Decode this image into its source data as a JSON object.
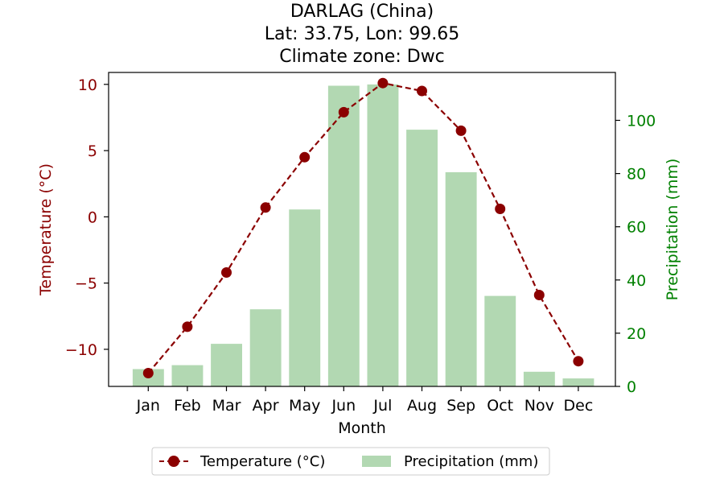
{
  "chart_data": {
    "type": "bar+line",
    "title_lines": [
      "DARLAG (China)",
      "Lat: 33.75, Lon: 99.65",
      "Climate zone: Dwc"
    ],
    "categories": [
      "Jan",
      "Feb",
      "Mar",
      "Apr",
      "May",
      "Jun",
      "Jul",
      "Aug",
      "Sep",
      "Oct",
      "Nov",
      "Dec"
    ],
    "xlabel": "Month",
    "ylabel_left": "Temperature (°C)",
    "ylabel_right": "Precipitation (mm)",
    "ylim_left": [
      -12.8,
      10.9
    ],
    "ylim_right": [
      0,
      118
    ],
    "yticks_left": [
      -10,
      -5,
      0,
      5,
      10
    ],
    "yticks_left_labels": [
      "−10",
      "−5",
      "0",
      "5",
      "10"
    ],
    "yticks_right": [
      0,
      20,
      40,
      60,
      80,
      100
    ],
    "yticks_right_labels": [
      "0",
      "20",
      "40",
      "60",
      "80",
      "100"
    ],
    "grid": false,
    "legend_position": "bottom-center",
    "series": [
      {
        "name": "Temperature (°C)",
        "kind": "line",
        "axis": "left",
        "values": [
          -11.8,
          -8.3,
          -4.2,
          0.7,
          4.5,
          7.9,
          10.1,
          9.5,
          6.5,
          0.6,
          -5.9,
          -10.9
        ]
      },
      {
        "name": "Precipitation (mm)",
        "kind": "bar",
        "axis": "right",
        "values": [
          6.5,
          8.0,
          16.0,
          29.0,
          66.5,
          113.0,
          113.5,
          96.5,
          80.5,
          34.0,
          5.5,
          3.0
        ]
      }
    ],
    "colors": {
      "temperature": "#8b0000",
      "precipitation": "#b2d8b2",
      "left_axis": "#8b0000",
      "right_axis": "#008000"
    }
  }
}
